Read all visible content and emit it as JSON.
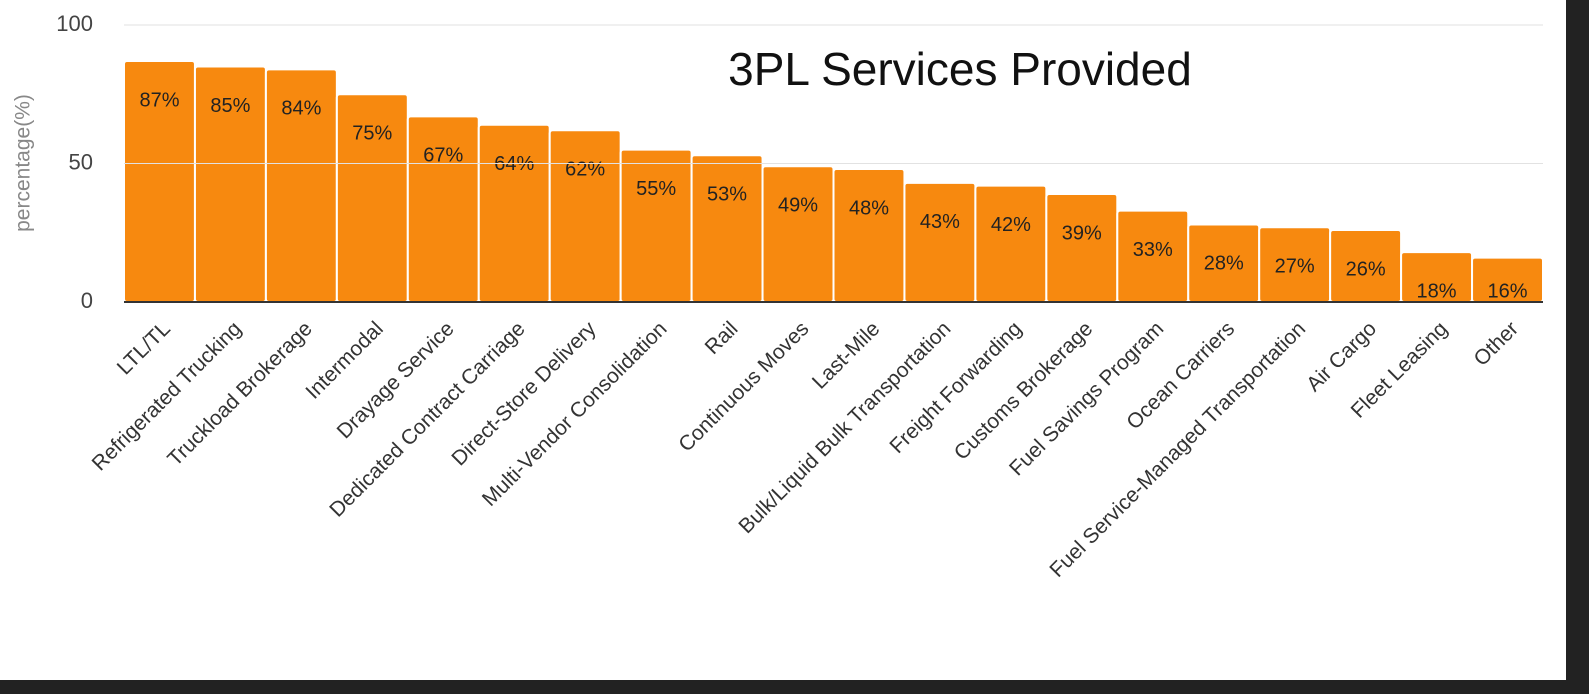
{
  "chart_data": {
    "type": "bar",
    "title": "3PL Services Provided",
    "y_label": "percentage(%)",
    "categories": [
      "LTL/TL",
      "Refrigerated Trucking",
      "Truckload Brokerage",
      "Intermodal",
      "Drayage Service",
      "Dedicated Contract Carriage",
      "Direct-Store Delivery",
      "Multi-Vendor Consolidation",
      "Rail",
      "Continuous Moves",
      "Last-Mile",
      "Bulk/Liquid Bulk Transportation",
      "Freight Forwarding",
      "Customs Brokerage",
      "Fuel Savings Program",
      "Ocean Carriers",
      "Fuel Service-Managed Transportation",
      "Air Cargo",
      "Fleet Leasing",
      "Other"
    ],
    "values": [
      87,
      85,
      84,
      75,
      67,
      64,
      62,
      55,
      53,
      49,
      48,
      43,
      42,
      39,
      33,
      28,
      27,
      26,
      18,
      16
    ],
    "value_labels": [
      "87%",
      "85%",
      "84%",
      "75%",
      "67%",
      "64%",
      "62%",
      "55%",
      "53%",
      "49%",
      "48%",
      "43%",
      "42%",
      "39%",
      "33%",
      "28%",
      "27%",
      "26%",
      "18%",
      "16%"
    ],
    "color": "#f7890f",
    "ylim": [
      0,
      100
    ],
    "yticks": [
      0,
      50,
      100
    ],
    "grid": true
  }
}
